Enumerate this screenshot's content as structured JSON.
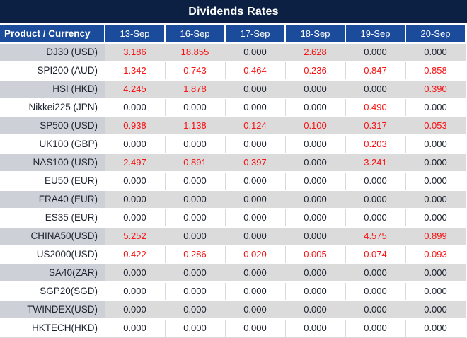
{
  "title": "Dividends Rates",
  "columns": [
    "Product / Currency",
    "13-Sep",
    "16-Sep",
    "17-Sep",
    "18-Sep",
    "19-Sep",
    "20-Sep"
  ],
  "rows": [
    {
      "product": "DJ30 (USD)",
      "values": [
        "3.186",
        "18.855",
        "0.000",
        "2.628",
        "0.000",
        "0.000"
      ]
    },
    {
      "product": "SPI200 (AUD)",
      "values": [
        "1.342",
        "0.743",
        "0.464",
        "0.236",
        "0.847",
        "0.858"
      ]
    },
    {
      "product": "HSI (HKD)",
      "values": [
        "4.245",
        "1.878",
        "0.000",
        "0.000",
        "0.000",
        "0.390"
      ]
    },
    {
      "product": "Nikkei225 (JPN)",
      "values": [
        "0.000",
        "0.000",
        "0.000",
        "0.000",
        "0.490",
        "0.000"
      ]
    },
    {
      "product": "SP500 (USD)",
      "values": [
        "0.938",
        "1.138",
        "0.124",
        "0.100",
        "0.317",
        "0.053"
      ]
    },
    {
      "product": "UK100 (GBP)",
      "values": [
        "0.000",
        "0.000",
        "0.000",
        "0.000",
        "0.203",
        "0.000"
      ]
    },
    {
      "product": "NAS100 (USD)",
      "values": [
        "2.497",
        "0.891",
        "0.397",
        "0.000",
        "3.241",
        "0.000"
      ]
    },
    {
      "product": "EU50 (EUR)",
      "values": [
        "0.000",
        "0.000",
        "0.000",
        "0.000",
        "0.000",
        "0.000"
      ]
    },
    {
      "product": "FRA40 (EUR)",
      "values": [
        "0.000",
        "0.000",
        "0.000",
        "0.000",
        "0.000",
        "0.000"
      ]
    },
    {
      "product": "ES35 (EUR)",
      "values": [
        "0.000",
        "0.000",
        "0.000",
        "0.000",
        "0.000",
        "0.000"
      ]
    },
    {
      "product": "CHINA50(USD)",
      "values": [
        "5.252",
        "0.000",
        "0.000",
        "0.000",
        "4.575",
        "0.899"
      ]
    },
    {
      "product": "US2000(USD)",
      "values": [
        "0.422",
        "0.286",
        "0.020",
        "0.005",
        "0.074",
        "0.093"
      ]
    },
    {
      "product": "SA40(ZAR)",
      "values": [
        "0.000",
        "0.000",
        "0.000",
        "0.000",
        "0.000",
        "0.000"
      ]
    },
    {
      "product": "SGP20(SGD)",
      "values": [
        "0.000",
        "0.000",
        "0.000",
        "0.000",
        "0.000",
        "0.000"
      ]
    },
    {
      "product": "TWINDEX(USD)",
      "values": [
        "0.000",
        "0.000",
        "0.000",
        "0.000",
        "0.000",
        "0.000"
      ]
    },
    {
      "product": "HKTECH(HKD)",
      "values": [
        "0.000",
        "0.000",
        "0.000",
        "0.000",
        "0.000",
        "0.000"
      ]
    }
  ],
  "colors": {
    "title_bg": "#0C2043",
    "header_bg": "#1B4C9C",
    "header_text": "#FFFFFF",
    "row_alt_label_bg": "#CDD1D7",
    "row_alt_value_bg": "#DBDBDB",
    "row_bg": "#FFFFFF",
    "value_zero": "#1C212E",
    "value_nonzero": "#FA1010",
    "grid_line": "#D9D9D9"
  }
}
